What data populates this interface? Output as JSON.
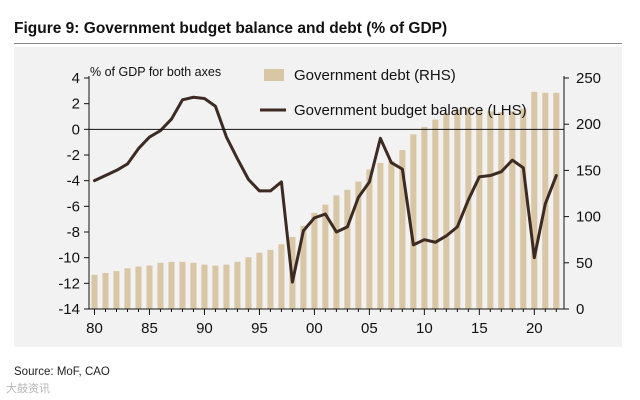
{
  "title": "Figure 9: Government budget balance and debt (% of GDP)",
  "source": "Source: MoF, CAO",
  "watermark": "大鼓资讯",
  "colors": {
    "panel_bg": "#f2f2f2",
    "debt_bar": "#d8c6a4",
    "balance_line": "#3d2a22",
    "axis": "#111111"
  },
  "chart_data": {
    "type": "bar+line",
    "title": "Figure 9: Government budget balance and debt (% of GDP)",
    "axis_note": "% of GDP for both axes",
    "x_tick_labels": [
      "80",
      "85",
      "90",
      "95",
      "00",
      "05",
      "10",
      "15",
      "20"
    ],
    "x_tick_years": [
      1980,
      1985,
      1990,
      1995,
      2000,
      2005,
      2010,
      2015,
      2020
    ],
    "xlim": [
      1979.5,
      2022.7
    ],
    "left_axis": {
      "label": "Government budget balance (LHS)",
      "range": [
        -14,
        4
      ],
      "ticks": [
        4,
        2,
        0,
        -2,
        -4,
        -6,
        -8,
        -10,
        -12,
        -14
      ]
    },
    "right_axis": {
      "label": "Government debt (RHS)",
      "range": [
        0,
        250
      ],
      "ticks": [
        250,
        200,
        150,
        100,
        50,
        0
      ]
    },
    "series": [
      {
        "name": "Government debt (RHS)",
        "type": "bar",
        "axis": "right",
        "x": [
          1980,
          1981,
          1982,
          1983,
          1984,
          1985,
          1986,
          1987,
          1988,
          1989,
          1990,
          1991,
          1992,
          1993,
          1994,
          1995,
          1996,
          1997,
          1998,
          1999,
          2000,
          2001,
          2002,
          2003,
          2004,
          2005,
          2006,
          2007,
          2008,
          2009,
          2010,
          2011,
          2012,
          2013,
          2014,
          2015,
          2016,
          2017,
          2018,
          2019,
          2020,
          2021,
          2022
        ],
        "values": [
          37,
          39,
          41,
          44,
          46,
          47,
          50,
          51,
          51,
          50,
          48,
          47,
          48,
          51,
          56,
          61,
          64,
          70,
          78,
          90,
          104,
          113,
          123,
          129,
          138,
          151,
          158,
          160,
          172,
          189,
          197,
          205,
          212,
          216,
          218,
          216,
          214,
          213,
          214,
          217,
          235,
          234,
          234
        ]
      },
      {
        "name": "Government budget balance (LHS)",
        "type": "line",
        "axis": "left",
        "x": [
          1980,
          1981,
          1982,
          1983,
          1984,
          1985,
          1986,
          1987,
          1988,
          1989,
          1990,
          1991,
          1992,
          1993,
          1994,
          1995,
          1996,
          1997,
          1998,
          1999,
          2000,
          2001,
          2002,
          2003,
          2004,
          2005,
          2006,
          2007,
          2008,
          2009,
          2010,
          2011,
          2012,
          2013,
          2014,
          2015,
          2016,
          2017,
          2018,
          2019,
          2020,
          2021,
          2022
        ],
        "values": [
          -4.0,
          -3.6,
          -3.2,
          -2.7,
          -1.5,
          -0.6,
          -0.1,
          0.8,
          2.3,
          2.5,
          2.4,
          1.8,
          -0.6,
          -2.3,
          -3.9,
          -4.8,
          -4.8,
          -4.1,
          -11.9,
          -7.9,
          -6.9,
          -6.6,
          -8.0,
          -7.6,
          -5.3,
          -4.1,
          -0.7,
          -2.6,
          -3.1,
          -9.0,
          -8.6,
          -8.8,
          -8.3,
          -7.6,
          -5.5,
          -3.7,
          -3.6,
          -3.3,
          -2.4,
          -3.0,
          -10.0,
          -5.8,
          -3.6
        ]
      }
    ]
  }
}
